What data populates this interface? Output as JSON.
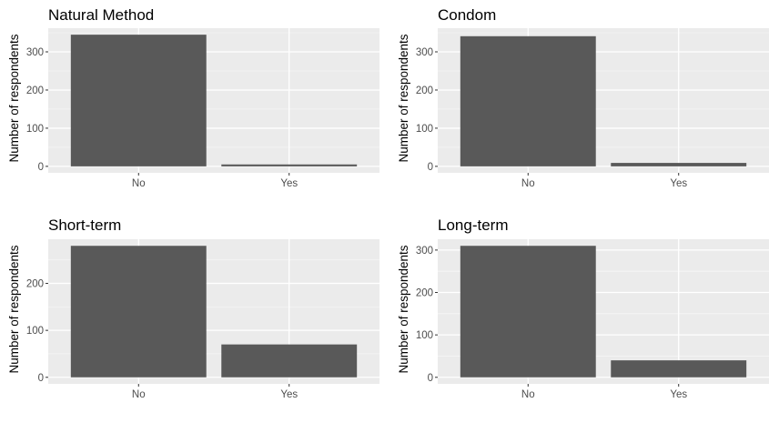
{
  "chart_data": [
    {
      "type": "bar",
      "title": "Natural Method",
      "xlabel": "",
      "ylabel": "Number of respondents",
      "categories": [
        "No",
        "Yes"
      ],
      "values": [
        345,
        5
      ],
      "yticks": [
        0,
        100,
        200,
        300
      ],
      "ylim": [
        -17,
        362
      ],
      "grid": true
    },
    {
      "type": "bar",
      "title": "Condom",
      "xlabel": "",
      "ylabel": "Number of respondents",
      "categories": [
        "No",
        "Yes"
      ],
      "values": [
        341,
        9
      ],
      "yticks": [
        0,
        100,
        200,
        300
      ],
      "ylim": [
        -17,
        362
      ],
      "grid": true
    },
    {
      "type": "bar",
      "title": "Short-term",
      "xlabel": "",
      "ylabel": "Number of respondents",
      "categories": [
        "No",
        "Yes"
      ],
      "values": [
        280,
        70
      ],
      "yticks": [
        0,
        100,
        200
      ],
      "ylim": [
        -14,
        294
      ],
      "grid": true
    },
    {
      "type": "bar",
      "title": "Long-term",
      "xlabel": "",
      "ylabel": "Number of respondents",
      "categories": [
        "No",
        "Yes"
      ],
      "values": [
        310,
        40
      ],
      "yticks": [
        0,
        100,
        200,
        300
      ],
      "ylim": [
        -15.5,
        325.5
      ],
      "grid": true
    }
  ],
  "colors": {
    "bar": "#595959",
    "panel_background": "#ebebeb",
    "grid_major": "#ffffff",
    "grid_minor": "#f5f5f5",
    "tick_text": "#4d4d4d",
    "tick_mark": "#333333"
  }
}
